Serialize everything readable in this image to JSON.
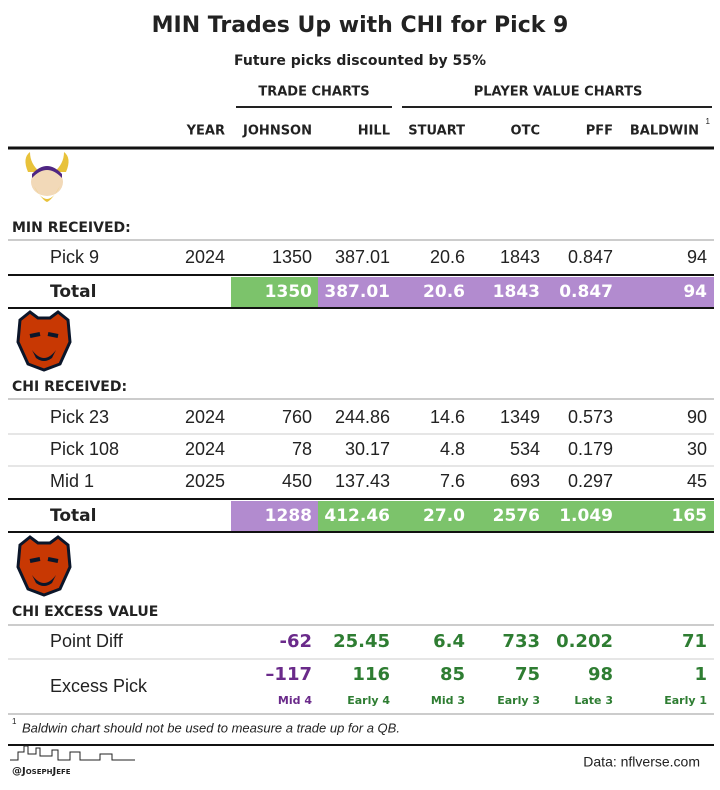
{
  "header": {
    "title": "MIN Trades Up with CHI for Pick 9",
    "subtitle": "Future picks discounted by 55%"
  },
  "table": {
    "groups": [
      "TRADE CHARTS",
      "PLAYER VALUE CHARTS"
    ],
    "columns": [
      "YEAR",
      "JOHNSON",
      "HILL",
      "STUART",
      "OTC",
      "PFF",
      "BALDWIN"
    ],
    "column_note": "1",
    "sections": [
      {
        "label": "MIN RECEIVED:",
        "rows": [
          {
            "label": "Pick 9",
            "cells": [
              "2024",
              "1350",
              "387.01",
              "20.6",
              "1843",
              "0.847",
              "94"
            ]
          }
        ],
        "total": {
          "label": "Total",
          "cells": [
            "1350",
            "387.01",
            "20.6",
            "1843",
            "0.847",
            "94"
          ],
          "colors": [
            "#7cc36b",
            "#b28bcf",
            "#b28bcf",
            "#b28bcf",
            "#b28bcf",
            "#b28bcf"
          ]
        }
      },
      {
        "label": "CHI RECEIVED:",
        "rows": [
          {
            "label": "Pick 23",
            "cells": [
              "2024",
              "760",
              "244.86",
              "14.6",
              "1349",
              "0.573",
              "90"
            ]
          },
          {
            "label": "Pick 108",
            "cells": [
              "2024",
              "78",
              "30.17",
              "4.8",
              "534",
              "0.179",
              "30"
            ]
          },
          {
            "label": "Mid 1",
            "cells": [
              "2025",
              "450",
              "137.43",
              "7.6",
              "693",
              "0.297",
              "45"
            ]
          }
        ],
        "total": {
          "label": "Total",
          "cells": [
            "1288",
            "412.46",
            "27.0",
            "2576",
            "1.049",
            "165"
          ],
          "colors": [
            "#b28bcf",
            "#7cc36b",
            "#7cc36b",
            "#7cc36b",
            "#7cc36b",
            "#7cc36b"
          ]
        }
      }
    ],
    "excess": {
      "label": "CHI EXCESS VALUE",
      "point_diff": {
        "label": "Point Diff",
        "cells": [
          "-62",
          "25.45",
          "6.4",
          "733",
          "0.202",
          "71"
        ]
      },
      "excess_pick": {
        "label": "Excess Pick",
        "cells": [
          "–117",
          "116",
          "85",
          "75",
          "98",
          "1"
        ],
        "notes": [
          "Mid 4",
          "Early 4",
          "Mid 3",
          "Early 3",
          "Late 3",
          "Early 1"
        ]
      },
      "colors": [
        "#6a2a8a",
        "#2e7d32",
        "#2e7d32",
        "#2e7d32",
        "#2e7d32",
        "#2e7d32"
      ]
    }
  },
  "footnote": {
    "marker": "1",
    "text": "Baldwin chart should not be used to measure a trade up for a QB."
  },
  "footer": {
    "handle": "@JosephJefe",
    "source": "Data: nflverse.com"
  }
}
